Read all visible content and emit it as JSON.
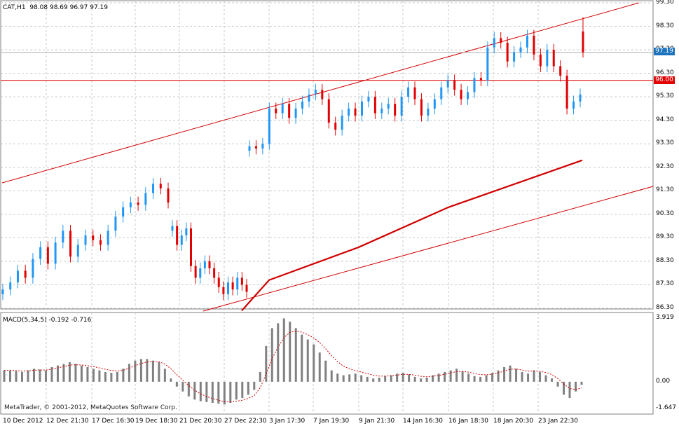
{
  "header": {
    "symbol_tf": "CAT,H1",
    "ohlc": "98.08 98.69 96.97 97.19"
  },
  "price_axis": {
    "labels": [
      "99.30",
      "98.30",
      "97.30",
      "96.30",
      "95.30",
      "94.30",
      "93.30",
      "92.30",
      "91.30",
      "90.30",
      "89.30",
      "88.30",
      "87.30",
      "86.30"
    ]
  },
  "markers": {
    "current_price": "97.19",
    "hline_price": "96.00",
    "current_price_color": "#1e73be",
    "hline_color": "#e00000"
  },
  "macd": {
    "title": "MACD(5,34,5) -0.192 -0.716",
    "axis": [
      "3.919",
      "0.00",
      "-1.647"
    ]
  },
  "time_axis": {
    "labels": [
      "10 Dec 2012",
      "12 Dec 21:30",
      "17 Dec 16:30",
      "19 Dec 18:30",
      "21 Dec 20:30",
      "27 Dec 22:30",
      "3 Jan 17:30",
      "7 Jan 19:30",
      "9 Jan 21:30",
      "14 Jan 16:30",
      "16 Jan 18:30",
      "18 Jan 20:30",
      "23 Jan 22:30"
    ]
  },
  "copyright": "MetaTrader, © 2001-2012, MetaQuotes Software Corp.",
  "colors": {
    "bull": "#2196f3",
    "bear": "#e00000",
    "ma": "#d00000",
    "grid": "#c8c8c8",
    "histogram": "#808080"
  },
  "chart_data": {
    "type": "candlestick",
    "symbol": "CAT",
    "timeframe": "H1",
    "ohlc_last": {
      "open": 98.08,
      "high": 98.69,
      "low": 96.97,
      "close": 97.19
    },
    "ylim": [
      86.1,
      99.3
    ],
    "x": [
      "10 Dec 2012",
      "12 Dec 21:30",
      "17 Dec 16:30",
      "19 Dec 18:30",
      "21 Dec 20:30",
      "27 Dec 22:30",
      "3 Jan 17:30",
      "7 Jan 19:30",
      "9 Jan 21:30",
      "14 Jan 16:30",
      "16 Jan 18:30",
      "18 Jan 20:30",
      "23 Jan 22:30"
    ],
    "horizontal_line": 96.0,
    "close_segments": [
      {
        "from": "10 Dec 2012",
        "to": "19 Dec 18:30",
        "closes": [
          87.1,
          87.4,
          87.9,
          87.6,
          88.4,
          88.9,
          88.2,
          89.1,
          89.6,
          88.5,
          89.0,
          89.4,
          89.2,
          89.0,
          89.6,
          90.2,
          90.6,
          90.8,
          90.7,
          91.2,
          91.6,
          91.4,
          90.8
        ]
      },
      {
        "from": "19 Dec 18:30",
        "to": "27 Dec 22:30",
        "closes": [
          89.8,
          89.0,
          89.4,
          89.7,
          88.1,
          87.6,
          88.0,
          88.3,
          88.0,
          87.6,
          87.2,
          86.9,
          87.4,
          87.1,
          87.6,
          87.3,
          87.0
        ]
      },
      {
        "from": "3 Jan 17:30",
        "to": "23 Jan 22:30",
        "closes": [
          93.2,
          93.1,
          93.3,
          94.8,
          94.6,
          95.0,
          94.4,
          94.8,
          95.1,
          95.4,
          95.6,
          95.2,
          94.2,
          93.9,
          94.5,
          94.8,
          94.5,
          95.1,
          95.3,
          94.6,
          94.8,
          95.0,
          94.5,
          95.3,
          95.7,
          95.2,
          94.5,
          94.8,
          95.2,
          95.7,
          96.0,
          95.6,
          95.2,
          95.5,
          96.1,
          96.0,
          97.4,
          97.8,
          97.6,
          96.8,
          97.2,
          97.4,
          97.9,
          97.1,
          96.6,
          97.3,
          96.6,
          96.2,
          94.8,
          95.1,
          95.4
        ]
      },
      {
        "from": "23 Jan 22:30",
        "to": "23 Jan 22:30",
        "closes": [
          98.08,
          97.19
        ]
      }
    ],
    "moving_average": [
      {
        "x": "27 Dec 22:30",
        "y": 86.2
      },
      {
        "x": "3 Jan 17:30",
        "y": 87.5
      },
      {
        "x": "9 Jan 21:30",
        "y": 88.9
      },
      {
        "x": "16 Jan 18:30",
        "y": 90.6
      },
      {
        "x": "23 Jan 22:30",
        "y": 92.6
      }
    ],
    "macd": {
      "params": "5,34,5",
      "main": -0.192,
      "signal": -0.716,
      "range": [
        -1.647,
        3.919
      ],
      "histogram": [
        0.7,
        0.7,
        0.65,
        0.6,
        0.7,
        0.8,
        0.75,
        0.7,
        0.9,
        1.0,
        1.1,
        1.2,
        1.1,
        1.0,
        0.9,
        0.8,
        0.7,
        0.6,
        0.55,
        0.6,
        0.8,
        1.1,
        1.3,
        1.4,
        1.4,
        1.3,
        1.2,
        0.8,
        0.2,
        -0.3,
        -0.6,
        -0.9,
        -1.1,
        -1.2,
        -1.25,
        -1.3,
        -1.35,
        -1.4,
        -1.3,
        -1.1,
        -1.0,
        -0.8,
        -0.5,
        0.6,
        2.2,
        3.3,
        3.6,
        3.9,
        3.7,
        3.3,
        2.9,
        2.6,
        2.3,
        1.8,
        1.3,
        0.7,
        0.5,
        0.4,
        0.45,
        0.5,
        0.4,
        0.3,
        0.2,
        0.25,
        0.35,
        0.4,
        0.5,
        0.55,
        0.45,
        0.3,
        0.2,
        0.25,
        0.4,
        0.5,
        0.6,
        0.7,
        0.8,
        0.65,
        0.5,
        0.35,
        0.3,
        0.4,
        0.55,
        0.7,
        0.9,
        1.0,
        0.8,
        0.6,
        0.5,
        0.7,
        0.6,
        0.4,
        0.2,
        -0.3,
        -0.8,
        -1.0,
        -0.6,
        -0.19
      ]
    }
  }
}
